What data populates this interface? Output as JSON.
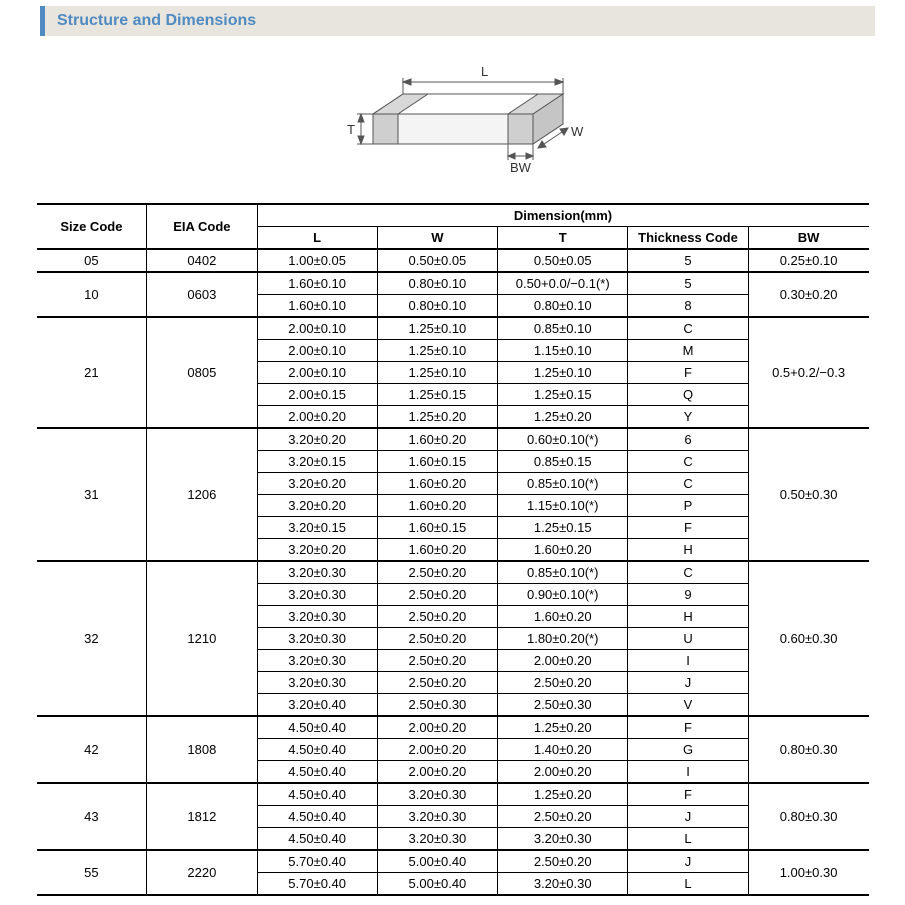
{
  "title": "Structure and Dimensions",
  "diagram": {
    "labels": {
      "L": "L",
      "W": "W",
      "T": "T",
      "BW": "BW"
    },
    "stroke": "#555555",
    "fill_top": "#ffffff",
    "fill_side": "#e9e9e9",
    "fill_end": "#cfcfcf",
    "terminal_fill": "#bfbfbf"
  },
  "table": {
    "header": {
      "size_code": "Size Code",
      "eia_code": "EIA Code",
      "dimension": "Dimension(mm)",
      "L": "L",
      "W": "W",
      "T": "T",
      "thickness_code": "Thickness Code",
      "BW": "BW"
    },
    "groups": [
      {
        "size_code": "05",
        "eia_code": "0402",
        "bw": "0.25±0.10",
        "rows": [
          {
            "L": "1.00±0.05",
            "W": "0.50±0.05",
            "T": "0.50±0.05",
            "tc": "5"
          }
        ]
      },
      {
        "size_code": "10",
        "eia_code": "0603",
        "bw": "0.30±0.20",
        "rows": [
          {
            "L": "1.60±0.10",
            "W": "0.80±0.10",
            "T": "0.50+0.0/−0.1(*)",
            "tc": "5"
          },
          {
            "L": "1.60±0.10",
            "W": "0.80±0.10",
            "T": "0.80±0.10",
            "tc": "8"
          }
        ]
      },
      {
        "size_code": "21",
        "eia_code": "0805",
        "bw": "0.5+0.2/−0.3",
        "rows": [
          {
            "L": "2.00±0.10",
            "W": "1.25±0.10",
            "T": "0.85±0.10",
            "tc": "C"
          },
          {
            "L": "2.00±0.10",
            "W": "1.25±0.10",
            "T": "1.15±0.10",
            "tc": "M"
          },
          {
            "L": "2.00±0.10",
            "W": "1.25±0.10",
            "T": "1.25±0.10",
            "tc": "F"
          },
          {
            "L": "2.00±0.15",
            "W": "1.25±0.15",
            "T": "1.25±0.15",
            "tc": "Q"
          },
          {
            "L": "2.00±0.20",
            "W": "1.25±0.20",
            "T": "1.25±0.20",
            "tc": "Y"
          }
        ]
      },
      {
        "size_code": "31",
        "eia_code": "1206",
        "bw": "0.50±0.30",
        "rows": [
          {
            "L": "3.20±0.20",
            "W": "1.60±0.20",
            "T": "0.60±0.10(*)",
            "tc": "6"
          },
          {
            "L": "3.20±0.15",
            "W": "1.60±0.15",
            "T": "0.85±0.15",
            "tc": "C"
          },
          {
            "L": "3.20±0.20",
            "W": "1.60±0.20",
            "T": "0.85±0.10(*)",
            "tc": "C"
          },
          {
            "L": "3.20±0.20",
            "W": "1.60±0.20",
            "T": "1.15±0.10(*)",
            "tc": "P"
          },
          {
            "L": "3.20±0.15",
            "W": "1.60±0.15",
            "T": "1.25±0.15",
            "tc": "F"
          },
          {
            "L": "3.20±0.20",
            "W": "1.60±0.20",
            "T": "1.60±0.20",
            "tc": "H"
          }
        ]
      },
      {
        "size_code": "32",
        "eia_code": "1210",
        "bw": "0.60±0.30",
        "rows": [
          {
            "L": "3.20±0.30",
            "W": "2.50±0.20",
            "T": "0.85±0.10(*)",
            "tc": "C"
          },
          {
            "L": "3.20±0.30",
            "W": "2.50±0.20",
            "T": "0.90±0.10(*)",
            "tc": "9"
          },
          {
            "L": "3.20±0.30",
            "W": "2.50±0.20",
            "T": "1.60±0.20",
            "tc": "H"
          },
          {
            "L": "3.20±0.30",
            "W": "2.50±0.20",
            "T": "1.80±0.20(*)",
            "tc": "U"
          },
          {
            "L": "3.20±0.30",
            "W": "2.50±0.20",
            "T": "2.00±0.20",
            "tc": "I"
          },
          {
            "L": "3.20±0.30",
            "W": "2.50±0.20",
            "T": "2.50±0.20",
            "tc": "J"
          },
          {
            "L": "3.20±0.40",
            "W": "2.50±0.30",
            "T": "2.50±0.30",
            "tc": "V"
          }
        ]
      },
      {
        "size_code": "42",
        "eia_code": "1808",
        "bw": "0.80±0.30",
        "rows": [
          {
            "L": "4.50±0.40",
            "W": "2.00±0.20",
            "T": "1.25±0.20",
            "tc": "F"
          },
          {
            "L": "4.50±0.40",
            "W": "2.00±0.20",
            "T": "1.40±0.20",
            "tc": "G"
          },
          {
            "L": "4.50±0.40",
            "W": "2.00±0.20",
            "T": "2.00±0.20",
            "tc": "I"
          }
        ]
      },
      {
        "size_code": "43",
        "eia_code": "1812",
        "bw": "0.80±0.30",
        "rows": [
          {
            "L": "4.50±0.40",
            "W": "3.20±0.30",
            "T": "1.25±0.20",
            "tc": "F"
          },
          {
            "L": "4.50±0.40",
            "W": "3.20±0.30",
            "T": "2.50±0.20",
            "tc": "J"
          },
          {
            "L": "4.50±0.40",
            "W": "3.20±0.30",
            "T": "3.20±0.30",
            "tc": "L"
          }
        ]
      },
      {
        "size_code": "55",
        "eia_code": "2220",
        "bw": "1.00±0.30",
        "rows": [
          {
            "L": "5.70±0.40",
            "W": "5.00±0.40",
            "T": "2.50±0.20",
            "tc": "J"
          },
          {
            "L": "5.70±0.40",
            "W": "5.00±0.40",
            "T": "3.20±0.30",
            "tc": "L"
          }
        ]
      }
    ]
  }
}
